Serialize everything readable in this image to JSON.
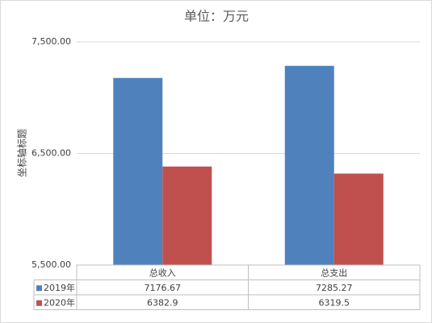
{
  "chart_data": {
    "type": "bar",
    "title": "单位：万元",
    "y_label": "坐标轴标题",
    "categories": [
      "总收入",
      "总支出"
    ],
    "series": [
      {
        "name": "2019年",
        "color": "#4f81bd",
        "values": [
          7176.67,
          7285.27
        ]
      },
      {
        "name": "2020年",
        "color": "#c0504d",
        "values": [
          6382.9,
          6319.5
        ]
      }
    ],
    "ylim": [
      5500,
      7500
    ],
    "yticks": [
      {
        "value": 5500,
        "label": "5,500.00"
      },
      {
        "value": 6500,
        "label": "6,500.00"
      },
      {
        "value": 7500,
        "label": "7,500.00"
      }
    ],
    "grid": true,
    "data_table": true
  }
}
